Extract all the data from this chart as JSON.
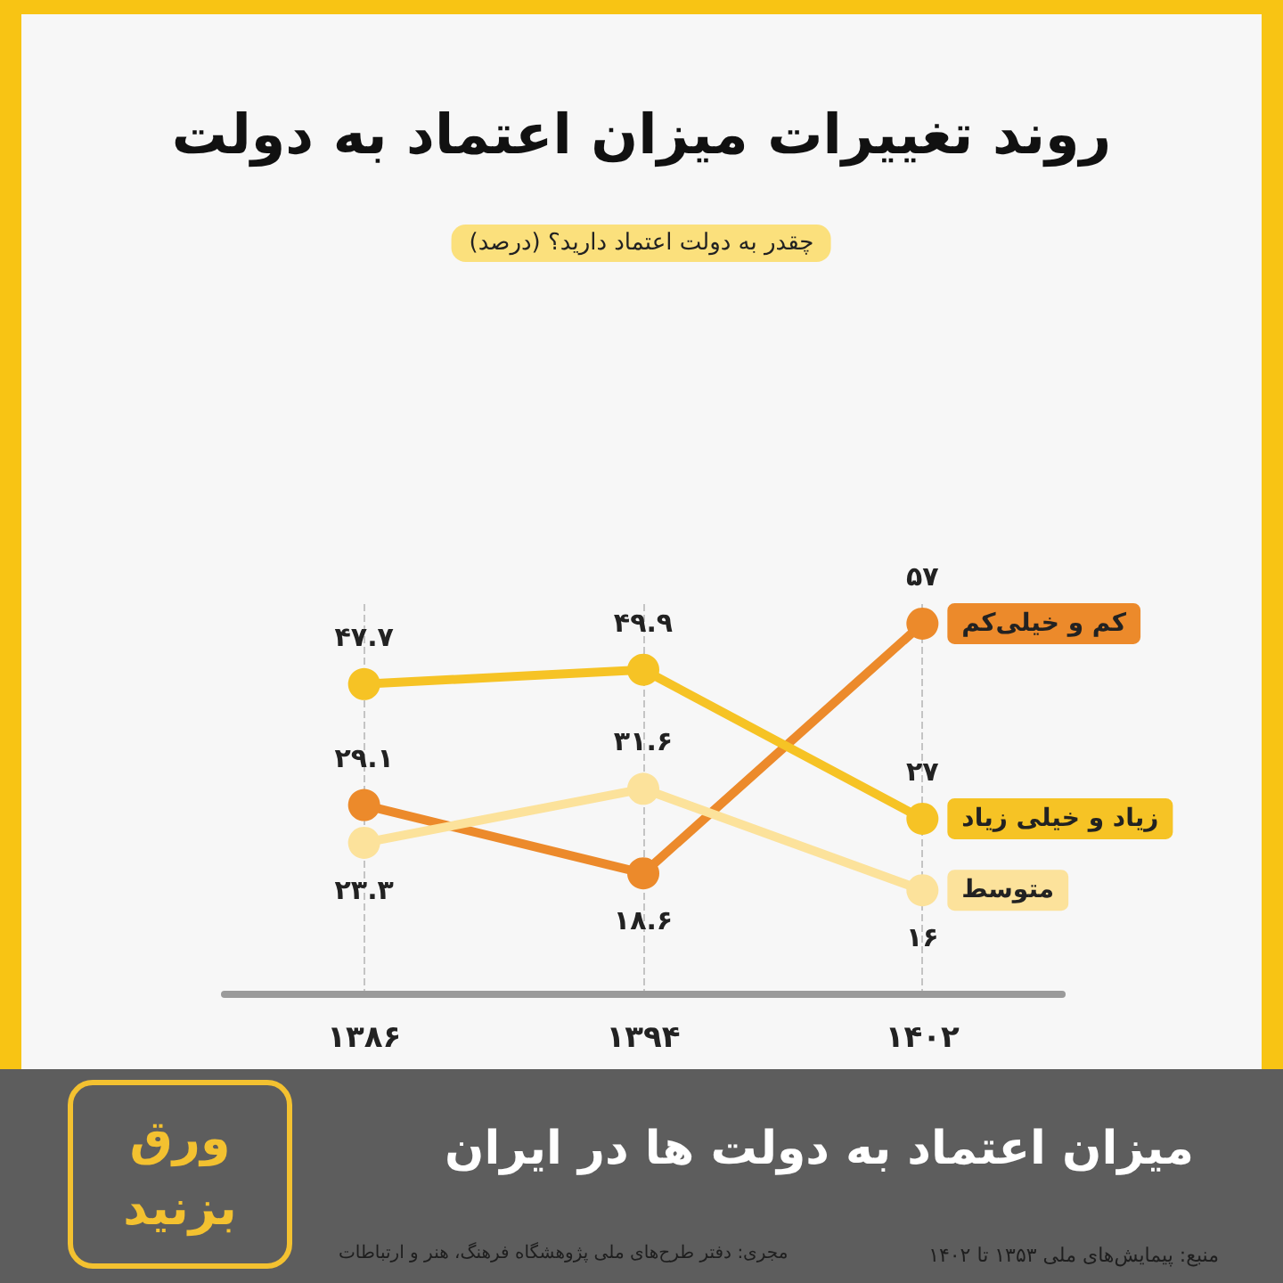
{
  "chart_data": {
    "type": "line",
    "title": "روند تغییرات میزان اعتماد به دولت",
    "subtitle": "چقدر به دولت اعتماد دارید؟ (درصد)",
    "categories": [
      "۱۳۸۶",
      "۱۳۹۴",
      "۱۴۰۲"
    ],
    "series": [
      {
        "name": "کم و خیلی‌کم",
        "color": "#ec8a2b",
        "values": [
          29.1,
          18.6,
          57
        ],
        "value_labels": [
          "۲۹.۱",
          "۱۸.۶",
          "۵۷"
        ]
      },
      {
        "name": "زیاد و خیلی زیاد",
        "color": "#f6c325",
        "values": [
          47.7,
          49.9,
          27
        ],
        "value_labels": [
          "۴۷.۷",
          "۴۹.۹",
          "۲۷"
        ]
      },
      {
        "name": "متوسط",
        "color": "#fce29b",
        "values": [
          23.3,
          31.6,
          16
        ],
        "value_labels": [
          "۲۳.۳",
          "۳۱.۶",
          "۱۶"
        ]
      }
    ],
    "annotations": [
      "میزان اعتماد به دولت ها در ایران",
      "ورق بزنید",
      "منبع: پیمایش‌های ملی ۱۳۵۳ تا ۱۴۰۲",
      "مجری: دفتر طرح‌های ملی پژوهشگاه فرهنگ، هنر و ارتباطات"
    ],
    "grid": "x",
    "marker": "circle",
    "line_style": "solid",
    "tick_labels": "x"
  }
}
